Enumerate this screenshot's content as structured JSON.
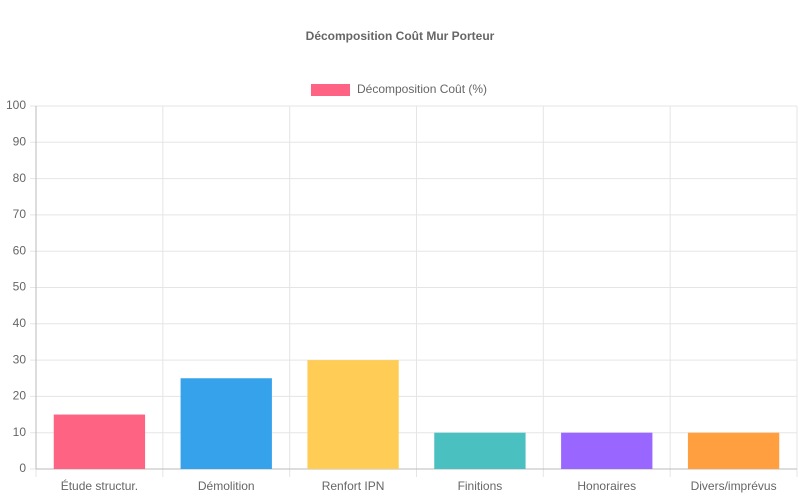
{
  "chart_data": {
    "type": "bar",
    "title": "Décomposition Coût Mur Porteur",
    "categories": [
      "Étude structur.",
      "Démolition",
      "Renfort IPN",
      "Finitions",
      "Honoraires",
      "Divers/imprévus"
    ],
    "series": [
      {
        "name": "Décomposition Coût (%)",
        "color": "#ff6384",
        "colors": [
          "#ff6384",
          "#36a2eb",
          "#ffcd56",
          "#4bc0c0",
          "#9966ff",
          "#ff9f40"
        ],
        "values": [
          15,
          25,
          30,
          10,
          10,
          10
        ]
      }
    ],
    "ylim": [
      0,
      100
    ],
    "yticks": [
      0,
      10,
      20,
      30,
      40,
      50,
      60,
      70,
      80,
      90,
      100
    ],
    "grid": true,
    "legend": "top"
  }
}
